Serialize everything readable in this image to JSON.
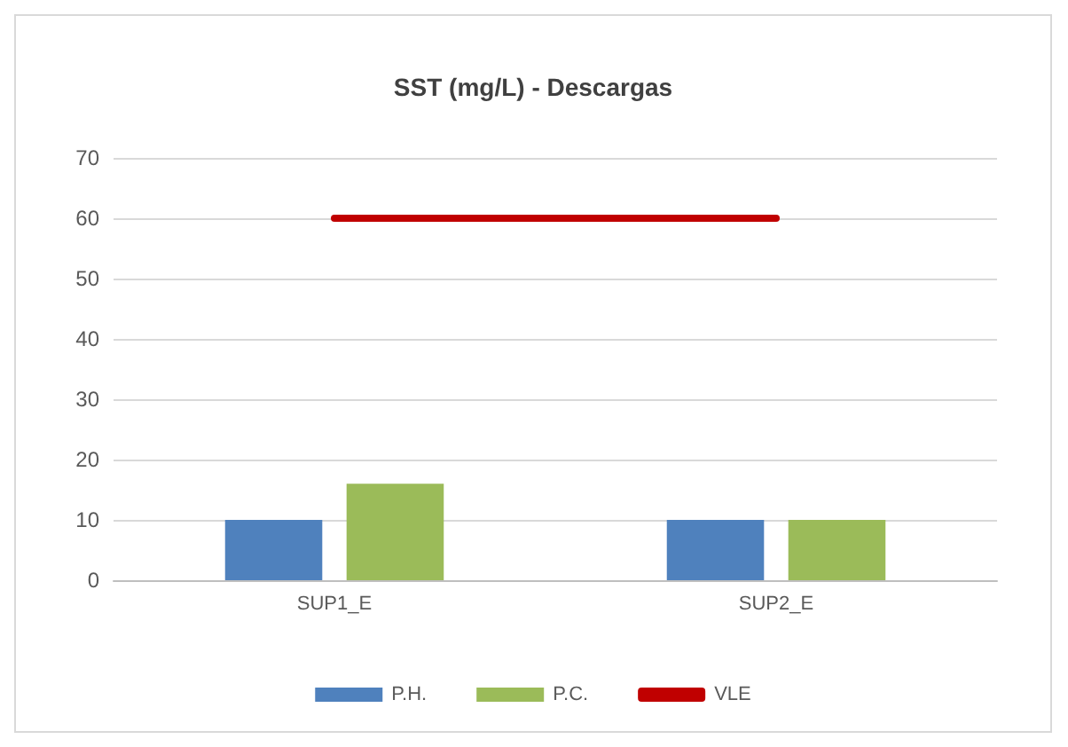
{
  "chart_data": {
    "type": "bar",
    "title": "SST (mg/L) - Descargas",
    "categories": [
      "SUP1_E",
      "SUP2_E"
    ],
    "series": [
      {
        "name": "P.H.",
        "color": "#4f81bd",
        "values": [
          10,
          10
        ]
      },
      {
        "name": "P.C.",
        "color": "#9bbb59",
        "values": [
          16,
          10
        ]
      },
      {
        "name": "VLE",
        "type": "line",
        "color": "#c00000",
        "values": [
          60,
          60
        ]
      }
    ],
    "ylim": [
      0,
      70
    ],
    "yticks": [
      0,
      10,
      20,
      30,
      40,
      50,
      60,
      70
    ],
    "grid": "y",
    "legend": "bottom",
    "marker": "none"
  }
}
